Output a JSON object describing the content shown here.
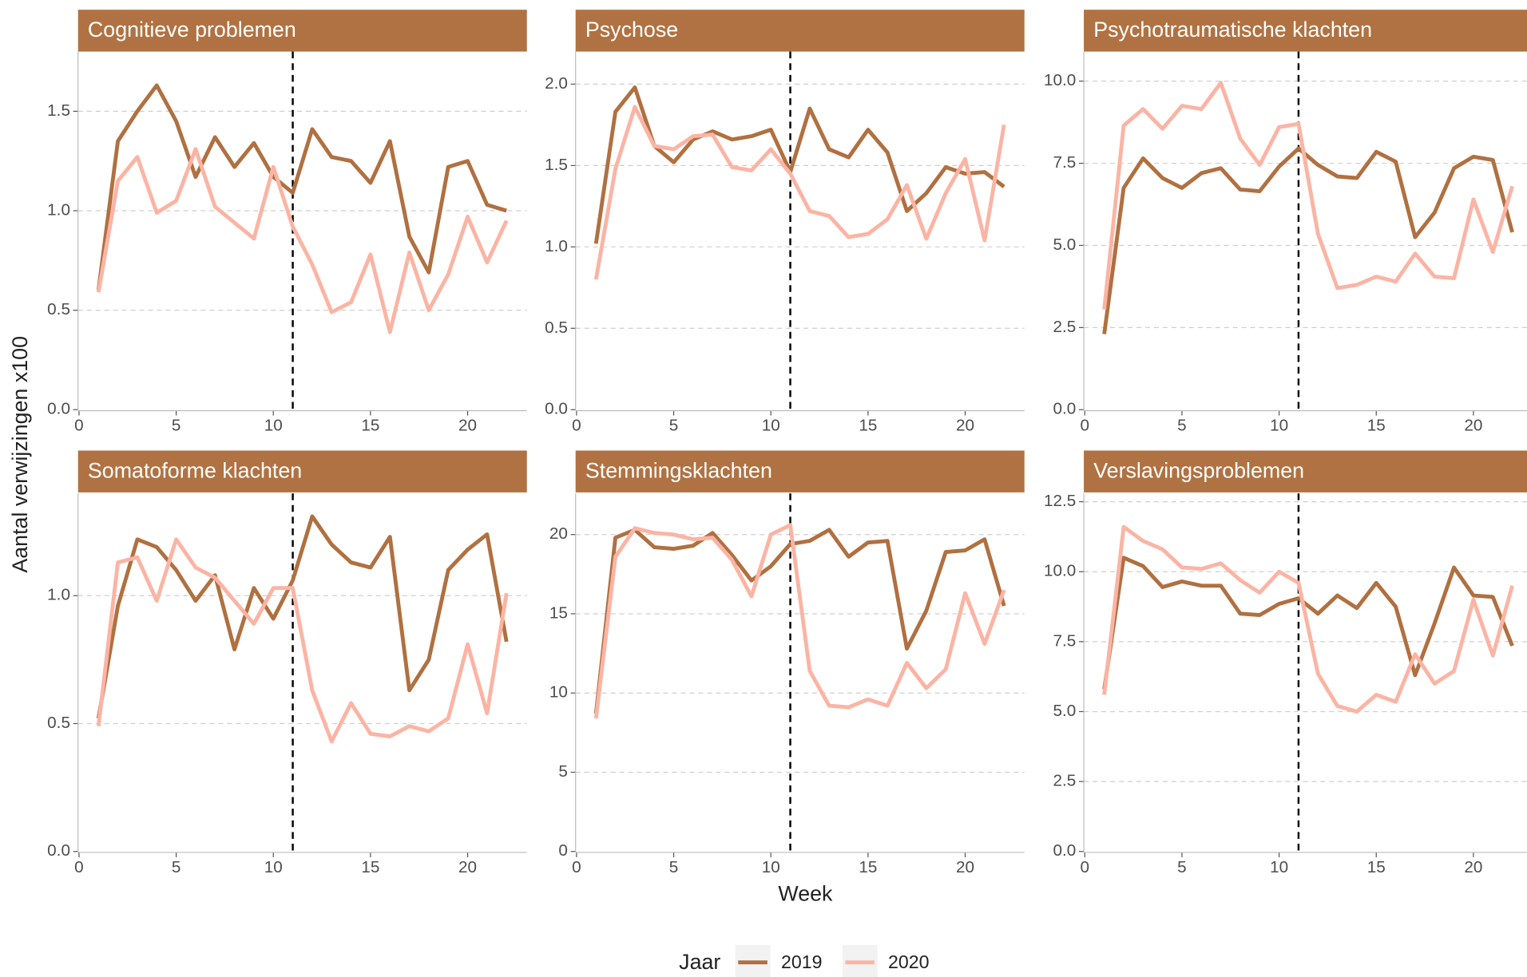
{
  "y_label": "Aantal verwijzingen x100",
  "x_label": "Week",
  "legend_title": "Jaar",
  "chart_data": [
    {
      "type": "line",
      "title": "Cognitieve problemen",
      "strip_color": "#b07242",
      "vline": 11,
      "x": [
        1,
        2,
        3,
        4,
        5,
        6,
        7,
        8,
        9,
        10,
        11,
        12,
        13,
        14,
        15,
        16,
        17,
        18,
        19,
        20,
        21,
        22
      ],
      "series": [
        {
          "name": "2019",
          "color": "#b07040",
          "values": [
            0.6,
            1.35,
            1.5,
            1.63,
            1.45,
            1.17,
            1.37,
            1.22,
            1.34,
            1.17,
            1.09,
            1.41,
            1.27,
            1.25,
            1.14,
            1.35,
            0.87,
            0.69,
            1.22,
            1.25,
            1.03,
            1.0
          ]
        },
        {
          "name": "2020",
          "color": "#fbb4a4",
          "values": [
            0.59,
            1.15,
            1.27,
            0.99,
            1.05,
            1.31,
            1.02,
            0.94,
            0.86,
            1.22,
            0.92,
            0.73,
            0.49,
            0.54,
            0.78,
            0.39,
            0.79,
            0.5,
            0.68,
            0.97,
            0.74,
            0.95
          ]
        }
      ],
      "xlim": [
        -0.05,
        23.05
      ],
      "xticks": [
        0,
        5,
        10,
        15,
        20
      ],
      "ylim": [
        0,
        1.8
      ],
      "yticks": [
        {
          "value": 0,
          "label": "0.0"
        },
        0.5,
        {
          "value": 1,
          "label": "1.0"
        },
        1.5
      ]
    },
    {
      "type": "line",
      "title": "Psychose",
      "strip_color": "#b07242",
      "vline": 11,
      "x": [
        1,
        2,
        3,
        4,
        5,
        6,
        7,
        8,
        9,
        10,
        11,
        12,
        13,
        14,
        15,
        16,
        17,
        18,
        19,
        20,
        21,
        22
      ],
      "series": [
        {
          "name": "2019",
          "color": "#b07040",
          "values": [
            1.02,
            1.83,
            1.98,
            1.62,
            1.52,
            1.66,
            1.71,
            1.66,
            1.68,
            1.72,
            1.46,
            1.85,
            1.6,
            1.55,
            1.72,
            1.58,
            1.22,
            1.33,
            1.49,
            1.45,
            1.46,
            1.37
          ]
        },
        {
          "name": "2020",
          "color": "#fbb4a4",
          "values": [
            0.8,
            1.48,
            1.86,
            1.62,
            1.6,
            1.68,
            1.69,
            1.49,
            1.47,
            1.6,
            1.45,
            1.22,
            1.19,
            1.06,
            1.08,
            1.17,
            1.38,
            1.05,
            1.33,
            1.54,
            1.04,
            1.75
          ]
        }
      ],
      "xlim": [
        -0.05,
        23.05
      ],
      "xticks": [
        0,
        5,
        10,
        15,
        20
      ],
      "ylim": [
        0,
        2.2
      ],
      "yticks": [
        {
          "value": 0,
          "label": "0.0"
        },
        0.5,
        {
          "value": 1,
          "label": "1.0"
        },
        1.5,
        {
          "value": 2,
          "label": "2.0"
        }
      ]
    },
    {
      "type": "line",
      "title": "Psychotraumatische klachten",
      "strip_color": "#b07242",
      "vline": 11,
      "x": [
        1,
        2,
        3,
        4,
        5,
        6,
        7,
        8,
        9,
        10,
        11,
        12,
        13,
        14,
        15,
        16,
        17,
        18,
        19,
        20,
        21,
        22
      ],
      "series": [
        {
          "name": "2019",
          "color": "#b07040",
          "values": [
            2.3,
            6.75,
            7.65,
            7.05,
            6.75,
            7.2,
            7.35,
            6.7,
            6.65,
            7.4,
            7.95,
            7.45,
            7.1,
            7.05,
            7.85,
            7.55,
            5.25,
            6.0,
            7.35,
            7.7,
            7.6,
            5.4
          ]
        },
        {
          "name": "2020",
          "color": "#fbb4a4",
          "values": [
            3.05,
            8.65,
            9.15,
            8.55,
            9.25,
            9.15,
            9.95,
            8.25,
            7.45,
            8.6,
            8.7,
            5.35,
            3.7,
            3.8,
            4.05,
            3.9,
            4.75,
            4.05,
            4.0,
            6.4,
            4.8,
            6.8
          ]
        }
      ],
      "xlim": [
        -0.05,
        23.05
      ],
      "xticks": [
        0,
        5,
        10,
        15,
        20
      ],
      "ylim": [
        0,
        10.9
      ],
      "yticks": [
        {
          "value": 0,
          "label": "0.0"
        },
        2.5,
        {
          "value": 5,
          "label": "5.0"
        },
        7.5,
        {
          "value": 10,
          "label": "10.0"
        }
      ]
    },
    {
      "type": "line",
      "title": "Somatoforme klachten",
      "strip_color": "#b07242",
      "vline": 11,
      "x": [
        1,
        2,
        3,
        4,
        5,
        6,
        7,
        8,
        9,
        10,
        11,
        12,
        13,
        14,
        15,
        16,
        17,
        18,
        19,
        20,
        21,
        22
      ],
      "series": [
        {
          "name": "2019",
          "color": "#b07040",
          "values": [
            0.52,
            0.96,
            1.22,
            1.19,
            1.1,
            0.98,
            1.08,
            0.79,
            1.03,
            0.91,
            1.06,
            1.31,
            1.2,
            1.13,
            1.11,
            1.23,
            0.63,
            0.75,
            1.1,
            1.18,
            1.24,
            0.82
          ]
        },
        {
          "name": "2020",
          "color": "#fbb4a4",
          "values": [
            0.49,
            1.13,
            1.15,
            0.98,
            1.22,
            1.11,
            1.07,
            0.98,
            0.89,
            1.03,
            1.03,
            0.63,
            0.43,
            0.58,
            0.46,
            0.45,
            0.49,
            0.47,
            0.52,
            0.81,
            0.54,
            1.01
          ]
        }
      ],
      "xlim": [
        -0.05,
        23.05
      ],
      "xticks": [
        0,
        5,
        10,
        15,
        20
      ],
      "ylim": [
        0,
        1.4
      ],
      "yticks": [
        {
          "value": 0,
          "label": "0.0"
        },
        0.5,
        {
          "value": 1,
          "label": "1.0"
        }
      ]
    },
    {
      "type": "line",
      "title": "Stemmingsklachten",
      "strip_color": "#b07242",
      "vline": 11,
      "x": [
        1,
        2,
        3,
        4,
        5,
        6,
        7,
        8,
        9,
        10,
        11,
        12,
        13,
        14,
        15,
        16,
        17,
        18,
        19,
        20,
        21,
        22
      ],
      "series": [
        {
          "name": "2019",
          "color": "#b07040",
          "values": [
            8.7,
            19.8,
            20.3,
            19.2,
            19.1,
            19.3,
            20.1,
            18.7,
            17.1,
            18.0,
            19.4,
            19.6,
            20.3,
            18.6,
            19.5,
            19.6,
            12.8,
            15.2,
            18.9,
            19.0,
            19.7,
            15.5
          ]
        },
        {
          "name": "2020",
          "color": "#fbb4a4",
          "values": [
            8.4,
            18.6,
            20.4,
            20.1,
            20.0,
            19.7,
            19.8,
            18.4,
            16.1,
            20.0,
            20.6,
            11.4,
            9.2,
            9.1,
            9.6,
            9.2,
            11.9,
            10.3,
            11.5,
            16.3,
            13.1,
            16.5
          ]
        }
      ],
      "xlim": [
        -0.05,
        23.05
      ],
      "xticks": [
        0,
        5,
        10,
        15,
        20
      ],
      "ylim": [
        0,
        22.6
      ],
      "yticks": [
        0,
        5,
        10,
        15,
        20
      ]
    },
    {
      "type": "line",
      "title": "Verslavingsproblemen",
      "strip_color": "#b07242",
      "vline": 11,
      "x": [
        1,
        2,
        3,
        4,
        5,
        6,
        7,
        8,
        9,
        10,
        11,
        12,
        13,
        14,
        15,
        16,
        17,
        18,
        19,
        20,
        21,
        22
      ],
      "series": [
        {
          "name": "2019",
          "color": "#b07040",
          "values": [
            5.8,
            10.5,
            10.2,
            9.45,
            9.65,
            9.5,
            9.5,
            8.5,
            8.45,
            8.85,
            9.05,
            8.5,
            9.15,
            8.7,
            9.6,
            8.75,
            6.3,
            8.15,
            10.15,
            9.15,
            9.1,
            7.35
          ]
        },
        {
          "name": "2020",
          "color": "#fbb4a4",
          "values": [
            5.6,
            11.6,
            11.1,
            10.8,
            10.15,
            10.1,
            10.3,
            9.7,
            9.25,
            10.0,
            9.6,
            6.35,
            5.2,
            5.0,
            5.6,
            5.35,
            7.05,
            6.0,
            6.45,
            9.0,
            7.0,
            9.5
          ]
        }
      ],
      "xlim": [
        -0.05,
        23.05
      ],
      "xticks": [
        0,
        5,
        10,
        15,
        20
      ],
      "ylim": [
        0,
        12.8
      ],
      "yticks": [
        {
          "value": 0,
          "label": "0.0"
        },
        2.5,
        {
          "value": 5,
          "label": "5.0"
        },
        7.5,
        {
          "value": 10,
          "label": "10.0"
        },
        12.5
      ]
    }
  ]
}
